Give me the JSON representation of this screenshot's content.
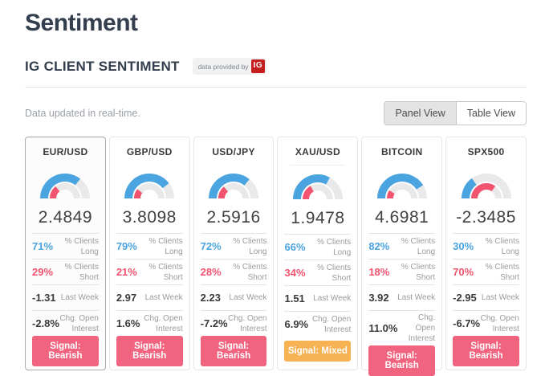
{
  "page": {
    "title": "Sentiment"
  },
  "section": {
    "heading": "IG CLIENT SENTIMENT",
    "provider_badge": {
      "text": "data provided by",
      "logo": "IG"
    }
  },
  "toolbar": {
    "status": "Data updated in real-time.",
    "views": [
      {
        "label": "Panel View",
        "active": true
      },
      {
        "label": "Table View",
        "active": false
      }
    ]
  },
  "labels": {
    "long": "% Clients Long",
    "short": "% Clients Short",
    "last_week": "Last Week",
    "chg_open_interest": "Chg. Open Interest"
  },
  "colors": {
    "accent_blue": "#4aa4e0",
    "accent_pink": "#f2536f",
    "signal_bearish": "#f0647f",
    "signal_mixed": "#f7b254",
    "gauge_track": "#e9e9e9",
    "provider_red": "#c41e1e"
  },
  "cards": [
    {
      "pair": "EUR/USD",
      "value": "2.4849",
      "clients_long": "71%",
      "clients_short": "29%",
      "last_week": "-1.31",
      "chg_open_interest": "-2.8%",
      "signal": "Signal: Bearish",
      "signal_type": "bearish",
      "selected": true
    },
    {
      "pair": "GBP/USD",
      "value": "3.8098",
      "clients_long": "79%",
      "clients_short": "21%",
      "last_week": "2.97",
      "chg_open_interest": "1.6%",
      "signal": "Signal: Bearish",
      "signal_type": "bearish",
      "selected": false
    },
    {
      "pair": "USD/JPY",
      "value": "2.5916",
      "clients_long": "72%",
      "clients_short": "28%",
      "last_week": "2.23",
      "chg_open_interest": "-7.2%",
      "signal": "Signal: Bearish",
      "signal_type": "bearish",
      "selected": false
    },
    {
      "pair": "XAU/USD",
      "value": "1.9478",
      "clients_long": "66%",
      "clients_short": "34%",
      "last_week": "1.51",
      "chg_open_interest": "6.9%",
      "signal": "Signal: Mixed",
      "signal_type": "mixed",
      "selected": false
    },
    {
      "pair": "BITCOIN",
      "value": "4.6981",
      "clients_long": "82%",
      "clients_short": "18%",
      "last_week": "3.92",
      "chg_open_interest": "11.0%",
      "signal": "Signal: Bearish",
      "signal_type": "bearish",
      "selected": false
    },
    {
      "pair": "SPX500",
      "value": "-2.3485",
      "clients_long": "30%",
      "clients_short": "70%",
      "last_week": "-2.95",
      "chg_open_interest": "-6.7%",
      "signal": "Signal: Bearish",
      "signal_type": "bearish",
      "selected": false
    }
  ]
}
